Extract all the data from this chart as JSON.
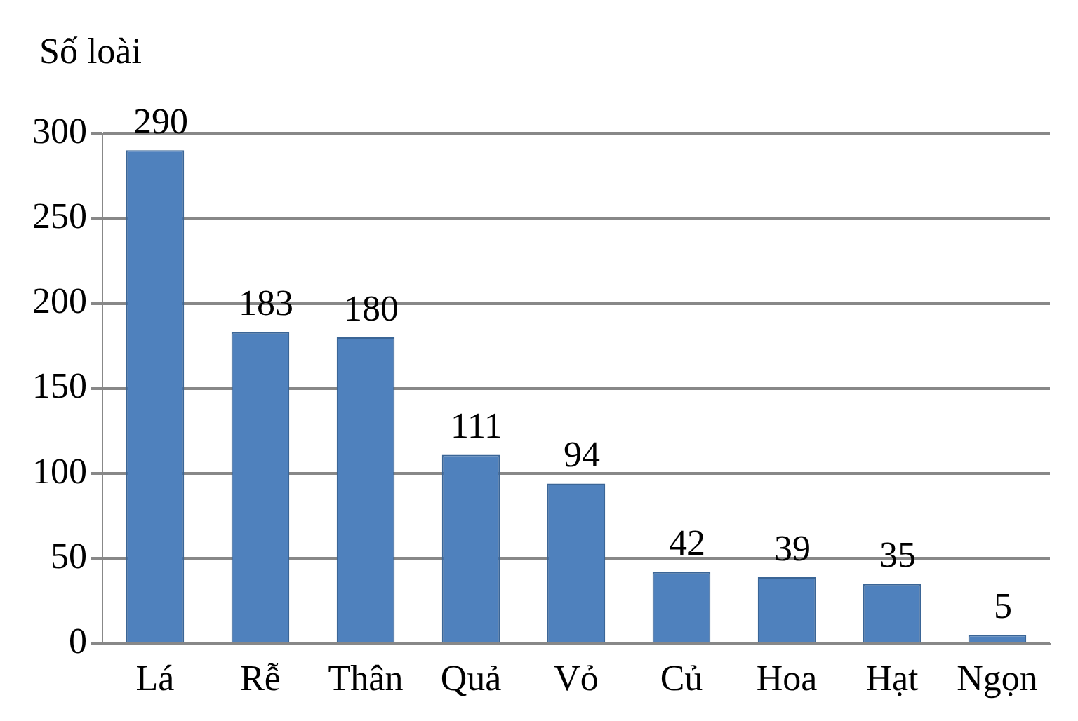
{
  "chart_data": {
    "type": "bar",
    "ylabel": "Số loài",
    "categories": [
      "Lá",
      "Rễ",
      "Thân",
      "Quả",
      "Vỏ",
      "Củ",
      "Hoa",
      "Hạt",
      "Ngọn"
    ],
    "values": [
      290,
      183,
      180,
      111,
      94,
      42,
      39,
      35,
      5
    ],
    "color": "#4f81bd",
    "ylim": [
      0,
      300
    ],
    "yticks": [
      0,
      50,
      100,
      150,
      200,
      250,
      300
    ],
    "grid": "y",
    "data_labels": true
  }
}
